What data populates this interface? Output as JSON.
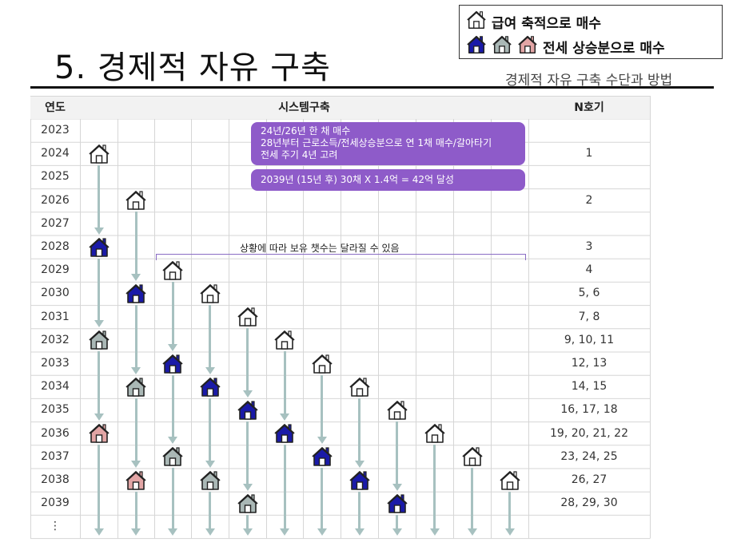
{
  "title": "5. 경제적 자유 구축",
  "subtitle": "경제적 자유 구축 수단과 방법",
  "legend": {
    "row1_label": "급여 축적으로 매수",
    "row2_label": "전세 상승분으로 매수",
    "row1_icons": [
      "house-outline-icon"
    ],
    "row2_icons": [
      "house-blue-icon",
      "house-gray-icon",
      "house-pink-icon"
    ]
  },
  "table": {
    "headers": {
      "year": "연도",
      "system": "시스템구축",
      "n": "N호기"
    },
    "rows": [
      {
        "year": "2023",
        "n": ""
      },
      {
        "year": "2024",
        "n": "1"
      },
      {
        "year": "2025",
        "n": ""
      },
      {
        "year": "2026",
        "n": "2"
      },
      {
        "year": "2027",
        "n": ""
      },
      {
        "year": "2028",
        "n": "3"
      },
      {
        "year": "2029",
        "n": "4"
      },
      {
        "year": "2030",
        "n": "5, 6"
      },
      {
        "year": "2031",
        "n": "7, 8"
      },
      {
        "year": "2032",
        "n": "9, 10, 11"
      },
      {
        "year": "2033",
        "n": "12, 13"
      },
      {
        "year": "2034",
        "n": "14, 15"
      },
      {
        "year": "2035",
        "n": "16, 17, 18"
      },
      {
        "year": "2036",
        "n": "19, 20, 21, 22"
      },
      {
        "year": "2037",
        "n": "23, 24, 25"
      },
      {
        "year": "2038",
        "n": "26, 27"
      },
      {
        "year": "2039",
        "n": "28, 29, 30"
      },
      {
        "year": "⋮",
        "n": ""
      }
    ]
  },
  "notes": {
    "note1_line1": "24년/26년 한 채 매수",
    "note1_line2": "28년부터 근로소득/전세상승분으로  연 1채 매수/갈아타기",
    "note1_line3": "전세 주기 4년 고려",
    "note2": "2039년 (15년  후) 30채 X 1.4억 = 42억 달성",
    "bracket": "상황에 따라 보유 챗수는 달라질 수 있음"
  },
  "colors": {
    "outline": "#ffffff",
    "blue": "#1a1aa8",
    "gray": "#aab8b6",
    "pink": "#e2a5a5",
    "arrow": "#a7c1c0",
    "note_bg": "#8e5bc9"
  },
  "houses": [
    {
      "col": 0,
      "row": 1,
      "kind": "outline"
    },
    {
      "col": 0,
      "row": 5,
      "kind": "blue"
    },
    {
      "col": 0,
      "row": 9,
      "kind": "gray"
    },
    {
      "col": 0,
      "row": 13,
      "kind": "pink"
    },
    {
      "col": 1,
      "row": 3,
      "kind": "outline"
    },
    {
      "col": 1,
      "row": 7,
      "kind": "blue"
    },
    {
      "col": 1,
      "row": 11,
      "kind": "gray"
    },
    {
      "col": 1,
      "row": 15,
      "kind": "pink"
    },
    {
      "col": 2,
      "row": 6,
      "kind": "outline"
    },
    {
      "col": 2,
      "row": 10,
      "kind": "blue"
    },
    {
      "col": 2,
      "row": 14,
      "kind": "gray"
    },
    {
      "col": 3,
      "row": 7,
      "kind": "outline"
    },
    {
      "col": 3,
      "row": 11,
      "kind": "blue"
    },
    {
      "col": 3,
      "row": 15,
      "kind": "gray"
    },
    {
      "col": 4,
      "row": 8,
      "kind": "outline"
    },
    {
      "col": 4,
      "row": 12,
      "kind": "blue"
    },
    {
      "col": 4,
      "row": 16,
      "kind": "gray"
    },
    {
      "col": 5,
      "row": 9,
      "kind": "outline"
    },
    {
      "col": 5,
      "row": 13,
      "kind": "blue"
    },
    {
      "col": 6,
      "row": 10,
      "kind": "outline"
    },
    {
      "col": 6,
      "row": 14,
      "kind": "blue"
    },
    {
      "col": 7,
      "row": 11,
      "kind": "outline"
    },
    {
      "col": 7,
      "row": 15,
      "kind": "blue"
    },
    {
      "col": 8,
      "row": 12,
      "kind": "outline"
    },
    {
      "col": 8,
      "row": 16,
      "kind": "blue"
    },
    {
      "col": 9,
      "row": 13,
      "kind": "outline"
    },
    {
      "col": 10,
      "row": 14,
      "kind": "outline"
    },
    {
      "col": 11,
      "row": 15,
      "kind": "outline"
    }
  ]
}
